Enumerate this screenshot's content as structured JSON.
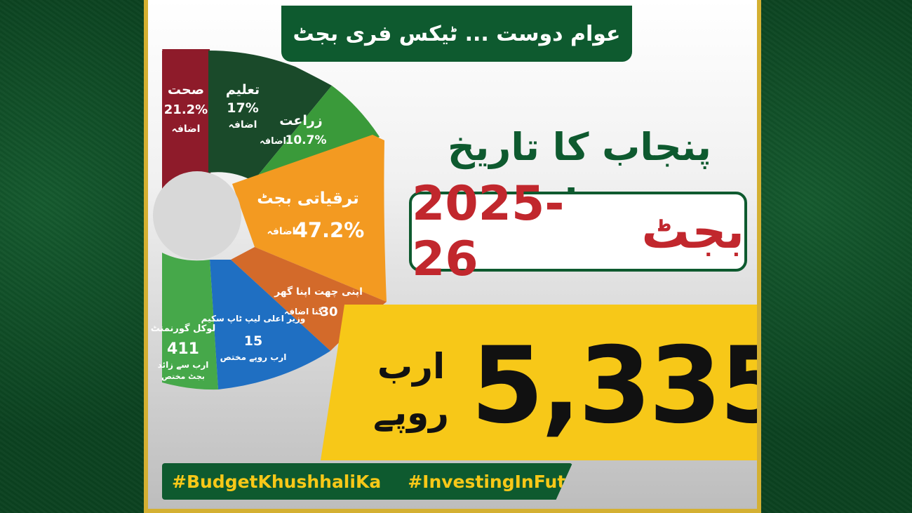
{
  "header": {
    "tagline": "عوام دوست ... ٹیکس فری بجٹ"
  },
  "title": "پنجاب کا تاریخ ساز",
  "budget_label": {
    "word": "بجٹ",
    "year": "2025-26"
  },
  "amount": {
    "value": "5,335",
    "unit_line1": "ارب",
    "unit_line2": "روپے"
  },
  "segments": [
    {
      "label": "صحت",
      "value": "21.2%",
      "note": "اضافہ",
      "color": "#8e1b2a"
    },
    {
      "label": "تعلیم",
      "value": "17%",
      "note": "اضافہ",
      "color": "#1a4a2a"
    },
    {
      "label": "زراعت",
      "value": "10.7%",
      "note": "اضافہ",
      "color": "#3a9a3a"
    },
    {
      "label": "ترقیاتی بجٹ",
      "value": "47.2%",
      "note": "اضافہ",
      "color": "#f39a21"
    },
    {
      "label": "اپنی چھت اپنا گھر",
      "value": "30",
      "note": "گنا اضافہ",
      "color": "#d36a2a"
    },
    {
      "label": "وزیر اعلی لیپ ٹاپ سکیم",
      "value": "15",
      "note": "ارب روپے مختص",
      "color": "#1f6fc2"
    },
    {
      "label": "لوکل گورنمنٹ",
      "value": "411",
      "note": "ارب سے زائد",
      "note2": "بجٹ مختص",
      "color": "#46a84a"
    }
  ],
  "hashtags": [
    "#BudgetKhushhaliKa",
    "#InvestingInFuture"
  ]
}
